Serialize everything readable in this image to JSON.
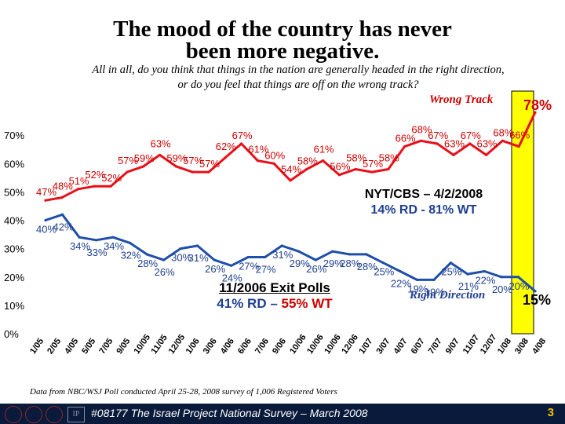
{
  "title_line1": "The mood of the country has never",
  "title_line2": "been more negative.",
  "question_line1": "All in all, do you think that things in the nation are generally headed in the right direction,",
  "question_line2": "or do you feel that things are off on the wrong track?",
  "source_note": "Data from NBC/WSJ Poll conducted April 25-28, 2008 survey of 1,006 Registered Voters",
  "footer": {
    "text": "#08177 The Israel Project National Survey – March 2008",
    "page_number": "3"
  },
  "legend": {
    "wrong_track": "Wrong Track",
    "right_direction": "Right Direction"
  },
  "latest": {
    "wrong_track": "78%",
    "right_direction": "15%"
  },
  "nyt_callout": {
    "line1": "NYT/CBS – 4/2/2008",
    "line2": "14% RD - 81% WT"
  },
  "exit_callout": {
    "line1": "11/2006 Exit Polls",
    "line2_rd": "41% RD – ",
    "line2_wt": "55% WT"
  },
  "colors": {
    "wrong_track": "#e8101a",
    "right_direction": "#1f4fa8",
    "highlight": "#ffff00",
    "footer": "#0a1a3a"
  },
  "chart_data": {
    "type": "line",
    "y_ticks": [
      "0%",
      "10%",
      "20%",
      "30%",
      "40%",
      "50%",
      "60%",
      "70%"
    ],
    "ylim": [
      0,
      80
    ],
    "x_tick_labels": [
      "1/05",
      "2/05",
      "4/05",
      "5/05",
      "7/05",
      "9/05",
      "10/05",
      "11/05",
      "12/05",
      "1/06",
      "3/06",
      "4/06",
      "6/06",
      "7/06",
      "9/06",
      "10/06",
      "10/06",
      "10/06",
      "12/06",
      "1/07",
      "3/07",
      "4/07",
      "6/07",
      "7/07",
      "9/07",
      "11/07",
      "12/07",
      "1/08",
      "3/08",
      "4/08"
    ],
    "series": [
      {
        "name": "Wrong Track",
        "values": [
          47,
          48,
          51,
          52,
          52,
          57,
          59,
          63,
          59,
          57,
          57,
          62,
          67,
          61,
          60,
          54,
          58,
          61,
          56,
          58,
          57,
          58,
          66,
          68,
          67,
          63,
          67,
          63,
          68,
          66,
          78
        ],
        "labels": [
          "47%",
          "48%",
          "51%",
          "52%",
          "52%",
          "57%",
          "59%",
          "63%",
          "59%",
          "57%",
          "57%",
          "62%",
          "67%",
          "61%",
          "60%",
          "54%",
          "58%",
          "61%",
          "56%",
          "58%",
          "57%",
          "58%",
          "66%",
          "68%",
          "67%",
          "63%",
          "67%",
          "63%",
          "68%",
          "66%",
          "78%"
        ]
      },
      {
        "name": "Right Direction",
        "values": [
          40,
          42,
          34,
          33,
          34,
          32,
          28,
          26,
          30,
          31,
          26,
          24,
          27,
          27,
          31,
          29,
          26,
          29,
          28,
          28,
          25,
          22,
          19,
          19,
          25,
          21,
          22,
          20,
          20,
          15
        ],
        "labels": [
          "40%",
          "42%",
          "34%",
          "33%",
          "34%",
          "32%",
          "28%",
          "26%",
          "30%",
          "31%",
          "26%",
          "24%",
          "27%",
          "27%",
          "31%",
          "29%",
          "26%",
          "29%",
          "28%",
          "28%",
          "25%",
          "22%",
          "19%",
          "19%",
          "25%",
          "21%",
          "22%",
          "20%",
          "20%",
          "15%"
        ]
      }
    ]
  }
}
